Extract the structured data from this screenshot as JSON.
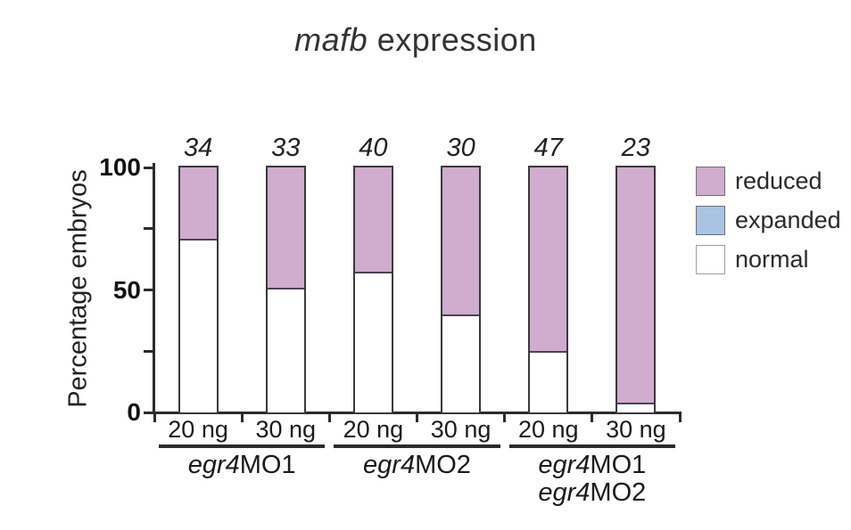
{
  "title": {
    "italic": "mafb",
    "regular": " expression"
  },
  "y_axis_label": "Percentage embryos",
  "legend": {
    "items": [
      {
        "label": "reduced",
        "color": "#d0acce"
      },
      {
        "label": "expanded",
        "color": "#a9c4e2"
      },
      {
        "label": "normal",
        "color": "#ffffff"
      }
    ]
  },
  "chart_data": {
    "type": "bar",
    "stacked": true,
    "title": "mafb expression",
    "ylabel": "Percentage embryos",
    "xlabel": "",
    "ylim": [
      0,
      100
    ],
    "y_major_ticks": [
      0,
      50,
      100
    ],
    "y_minor_ticks": [
      25,
      75
    ],
    "legend_position": "right",
    "categories": [
      "20 ng",
      "30 ng",
      "20 ng",
      "30 ng",
      "20 ng",
      "30 ng"
    ],
    "counts": [
      34,
      33,
      40,
      30,
      47,
      23
    ],
    "series": [
      {
        "name": "reduced",
        "color": "#d0acce",
        "values": [
          29,
          49,
          42.5,
          60,
          75,
          96
        ]
      },
      {
        "name": "expanded",
        "color": "#a9c4e2",
        "values": [
          0,
          0,
          0,
          0,
          0,
          0
        ]
      },
      {
        "name": "normal",
        "color": "#ffffff",
        "values": [
          71,
          51,
          57.5,
          40,
          25,
          4
        ]
      }
    ],
    "groups": [
      {
        "bars": [
          0,
          1
        ],
        "lines": [
          {
            "italic": "egr4",
            "regular": "MO1"
          }
        ]
      },
      {
        "bars": [
          2,
          3
        ],
        "lines": [
          {
            "italic": "egr4",
            "regular": "MO2"
          }
        ]
      },
      {
        "bars": [
          4,
          5
        ],
        "lines": [
          {
            "italic": "egr4",
            "regular": "MO1"
          },
          {
            "italic": "egr4",
            "regular": "MO2"
          }
        ]
      }
    ]
  }
}
